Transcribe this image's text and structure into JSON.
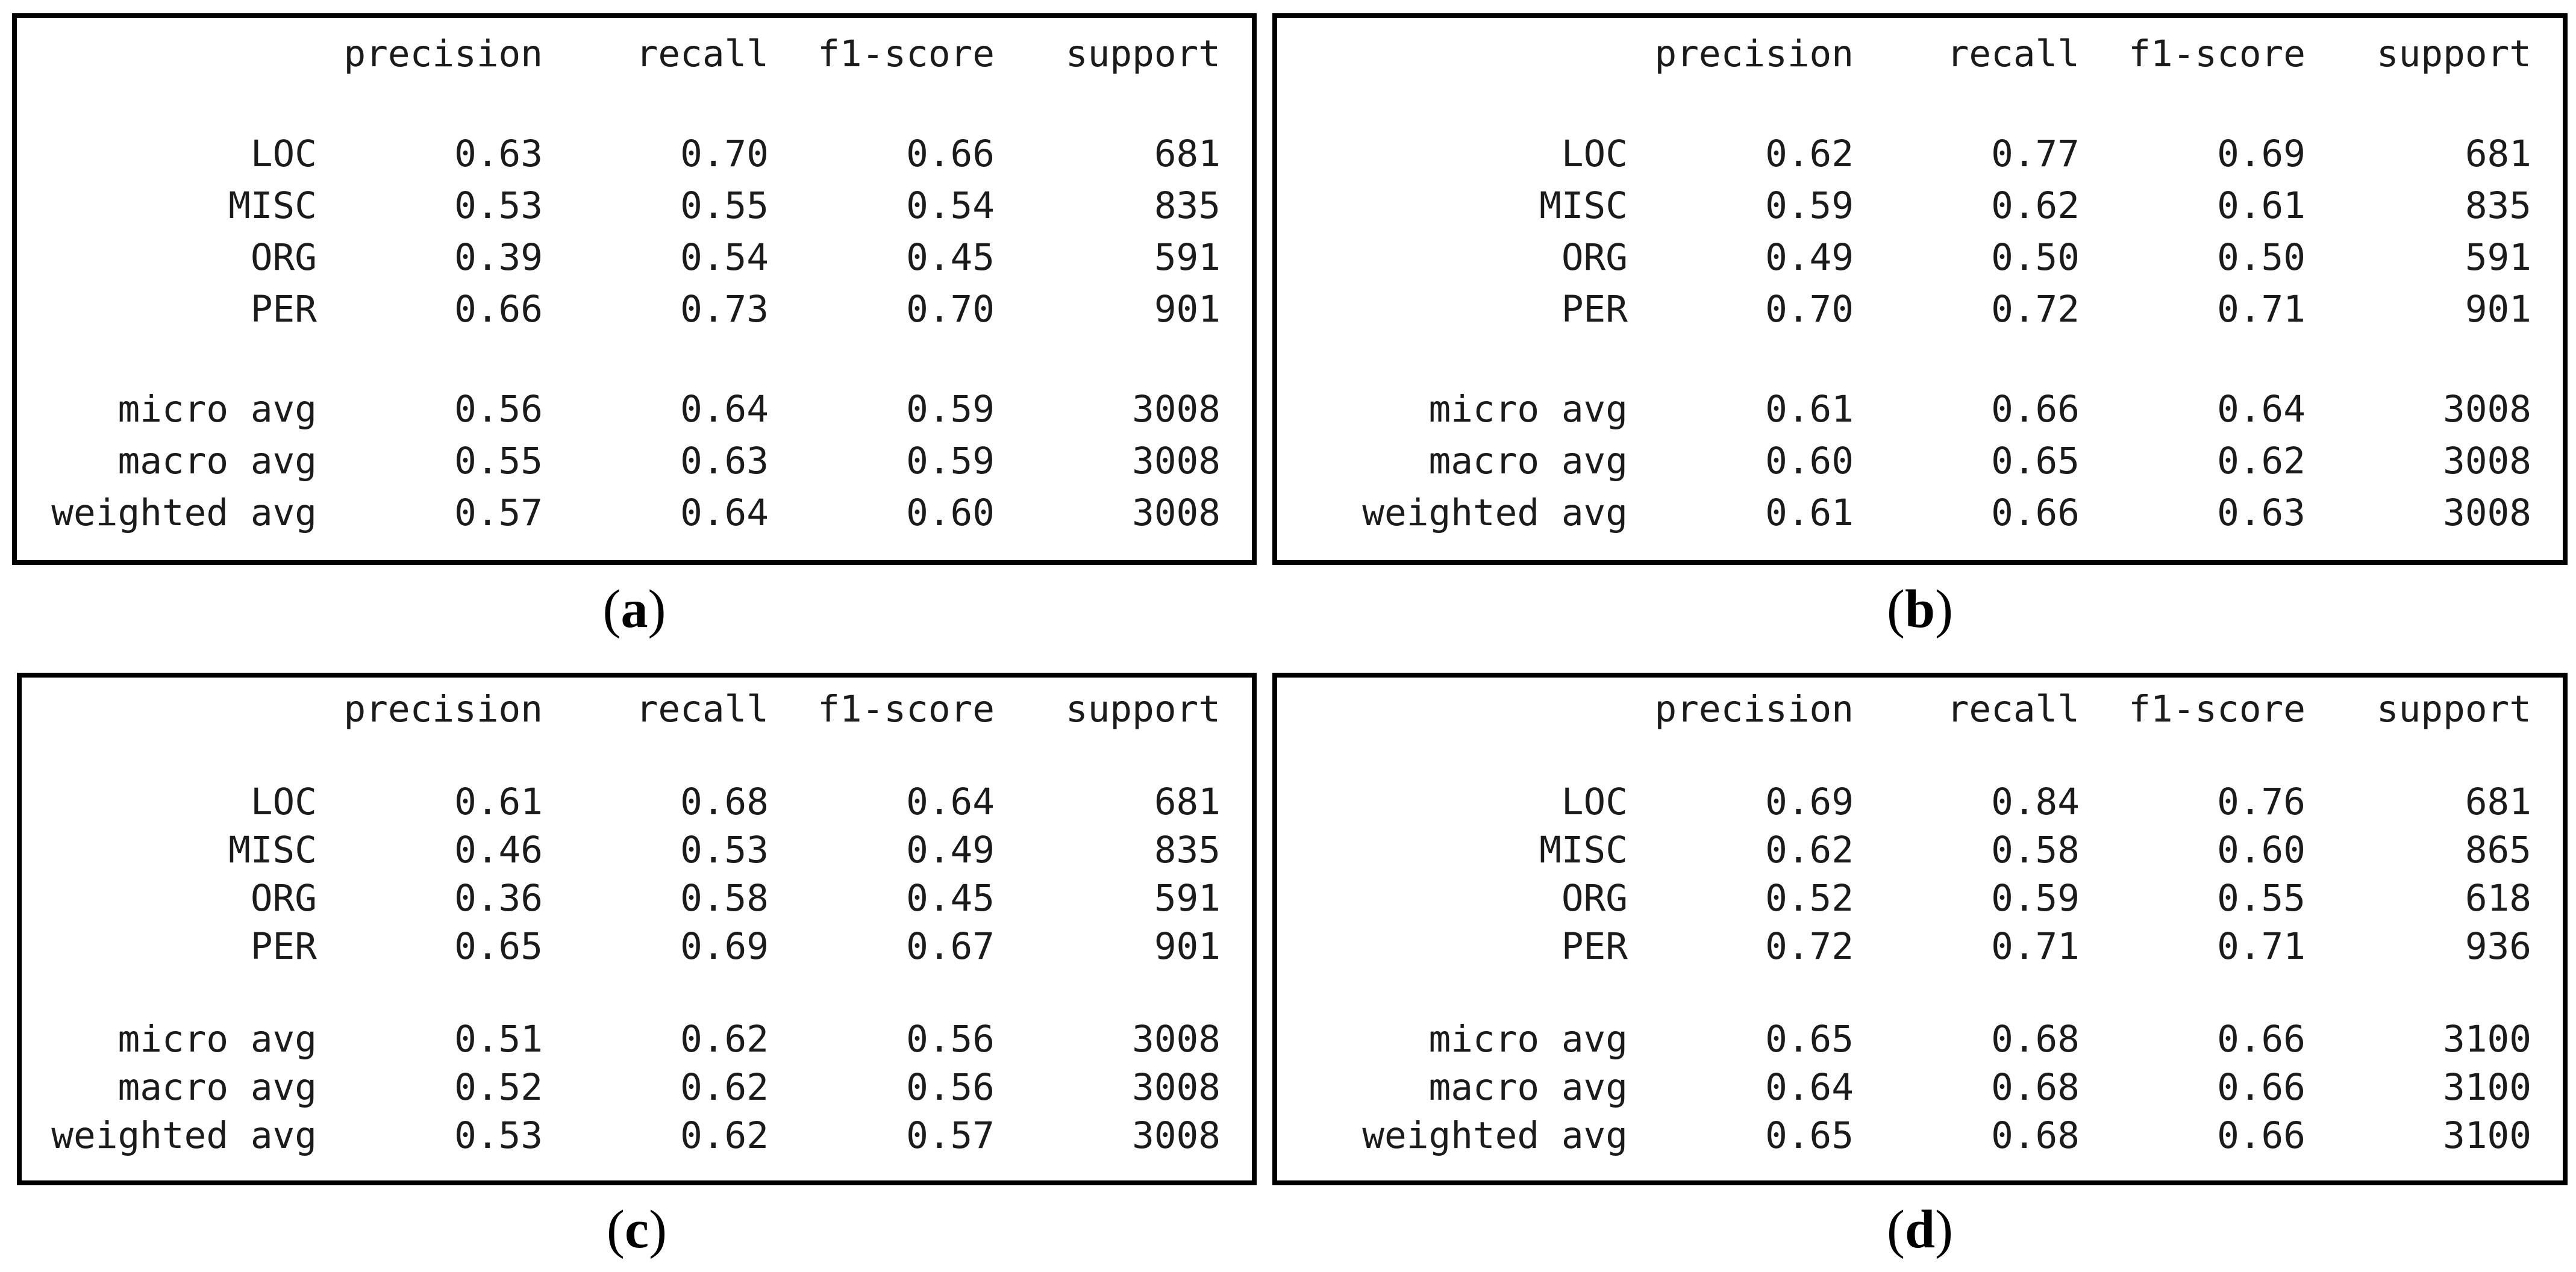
{
  "figure": {
    "background": "#ffffff",
    "text_color": "#1b1b1b",
    "border_color": "#000000"
  },
  "chart_data": [
    {
      "type": "table",
      "panel": "a",
      "caption": {
        "open": "(",
        "letter": "a",
        "close": ")"
      },
      "columns": [
        "precision",
        "recall",
        "f1-score",
        "support"
      ],
      "rows": [
        {
          "label": "LOC",
          "precision": "0.63",
          "recall": "0.70",
          "f1_score": "0.66",
          "support": "681"
        },
        {
          "label": "MISC",
          "precision": "0.53",
          "recall": "0.55",
          "f1_score": "0.54",
          "support": "835"
        },
        {
          "label": "ORG",
          "precision": "0.39",
          "recall": "0.54",
          "f1_score": "0.45",
          "support": "591"
        },
        {
          "label": "PER",
          "precision": "0.66",
          "recall": "0.73",
          "f1_score": "0.70",
          "support": "901"
        }
      ],
      "avg_rows": [
        {
          "label": "micro avg",
          "precision": "0.56",
          "recall": "0.64",
          "f1_score": "0.59",
          "support": "3008"
        },
        {
          "label": "macro avg",
          "precision": "0.55",
          "recall": "0.63",
          "f1_score": "0.59",
          "support": "3008"
        },
        {
          "label": "weighted avg",
          "precision": "0.57",
          "recall": "0.64",
          "f1_score": "0.60",
          "support": "3008"
        }
      ]
    },
    {
      "type": "table",
      "panel": "b",
      "caption": {
        "open": "(",
        "letter": "b",
        "close": ")"
      },
      "columns": [
        "precision",
        "recall",
        "f1-score",
        "support"
      ],
      "rows": [
        {
          "label": "LOC",
          "precision": "0.62",
          "recall": "0.77",
          "f1_score": "0.69",
          "support": "681"
        },
        {
          "label": "MISC",
          "precision": "0.59",
          "recall": "0.62",
          "f1_score": "0.61",
          "support": "835"
        },
        {
          "label": "ORG",
          "precision": "0.49",
          "recall": "0.50",
          "f1_score": "0.50",
          "support": "591"
        },
        {
          "label": "PER",
          "precision": "0.70",
          "recall": "0.72",
          "f1_score": "0.71",
          "support": "901"
        }
      ],
      "avg_rows": [
        {
          "label": "micro avg",
          "precision": "0.61",
          "recall": "0.66",
          "f1_score": "0.64",
          "support": "3008"
        },
        {
          "label": "macro avg",
          "precision": "0.60",
          "recall": "0.65",
          "f1_score": "0.62",
          "support": "3008"
        },
        {
          "label": "weighted avg",
          "precision": "0.61",
          "recall": "0.66",
          "f1_score": "0.63",
          "support": "3008"
        }
      ]
    },
    {
      "type": "table",
      "panel": "c",
      "caption": {
        "open": "(",
        "letter": "c",
        "close": ")"
      },
      "columns": [
        "precision",
        "recall",
        "f1-score",
        "support"
      ],
      "rows": [
        {
          "label": "LOC",
          "precision": "0.61",
          "recall": "0.68",
          "f1_score": "0.64",
          "support": "681"
        },
        {
          "label": "MISC",
          "precision": "0.46",
          "recall": "0.53",
          "f1_score": "0.49",
          "support": "835"
        },
        {
          "label": "ORG",
          "precision": "0.36",
          "recall": "0.58",
          "f1_score": "0.45",
          "support": "591"
        },
        {
          "label": "PER",
          "precision": "0.65",
          "recall": "0.69",
          "f1_score": "0.67",
          "support": "901"
        }
      ],
      "avg_rows": [
        {
          "label": "micro avg",
          "precision": "0.51",
          "recall": "0.62",
          "f1_score": "0.56",
          "support": "3008"
        },
        {
          "label": "macro avg",
          "precision": "0.52",
          "recall": "0.62",
          "f1_score": "0.56",
          "support": "3008"
        },
        {
          "label": "weighted avg",
          "precision": "0.53",
          "recall": "0.62",
          "f1_score": "0.57",
          "support": "3008"
        }
      ]
    },
    {
      "type": "table",
      "panel": "d",
      "caption": {
        "open": "(",
        "letter": "d",
        "close": ")"
      },
      "columns": [
        "precision",
        "recall",
        "f1-score",
        "support"
      ],
      "rows": [
        {
          "label": "LOC",
          "precision": "0.69",
          "recall": "0.84",
          "f1_score": "0.76",
          "support": "681"
        },
        {
          "label": "MISC",
          "precision": "0.62",
          "recall": "0.58",
          "f1_score": "0.60",
          "support": "865"
        },
        {
          "label": "ORG",
          "precision": "0.52",
          "recall": "0.59",
          "f1_score": "0.55",
          "support": "618"
        },
        {
          "label": "PER",
          "precision": "0.72",
          "recall": "0.71",
          "f1_score": "0.71",
          "support": "936"
        }
      ],
      "avg_rows": [
        {
          "label": "micro avg",
          "precision": "0.65",
          "recall": "0.68",
          "f1_score": "0.66",
          "support": "3100"
        },
        {
          "label": "macro avg",
          "precision": "0.64",
          "recall": "0.68",
          "f1_score": "0.66",
          "support": "3100"
        },
        {
          "label": "weighted avg",
          "precision": "0.65",
          "recall": "0.68",
          "f1_score": "0.66",
          "support": "3100"
        }
      ]
    }
  ]
}
